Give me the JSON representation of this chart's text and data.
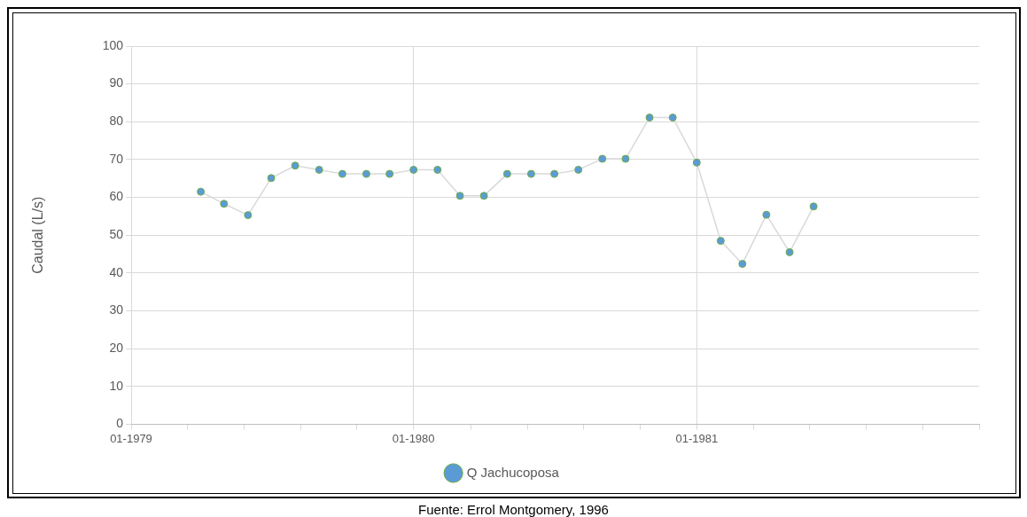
{
  "chart_data": {
    "type": "line",
    "ylabel": "Caudal (L/s)",
    "x": [
      "1979-04",
      "1979-05",
      "1979-06",
      "1979-07",
      "1979-08",
      "1979-09",
      "1979-10",
      "1979-11",
      "1979-12",
      "1980-01",
      "1980-02",
      "1980-03",
      "1980-04",
      "1980-05",
      "1980-06",
      "1980-07",
      "1980-08",
      "1980-09",
      "1980-10",
      "1980-11",
      "1980-12",
      "1981-01",
      "1981-02",
      "1981-03",
      "1981-04",
      "1981-05",
      "1981-06"
    ],
    "series": [
      {
        "name": "Q Jachucoposa",
        "color": "#5b9bd5",
        "values": [
          61.5,
          58.3,
          55.3,
          65.1,
          68.4,
          67.3,
          66.2,
          66.2,
          66.2,
          67.3,
          67.3,
          60.4,
          60.4,
          66.2,
          66.2,
          66.2,
          67.3,
          70.2,
          70.2,
          81.1,
          81.1,
          69.2,
          48.5,
          42.4,
          55.4,
          45.5,
          57.6
        ]
      }
    ],
    "xlim": [
      "1979-01-01",
      "1982-01-01"
    ],
    "xticks": [
      {
        "value": "1979-01-01",
        "label": "01-1979"
      },
      {
        "value": "1979-03-15",
        "label": null
      },
      {
        "value": "1979-05-27",
        "label": null
      },
      {
        "value": "1979-08-08",
        "label": null
      },
      {
        "value": "1979-10-20",
        "label": null
      },
      {
        "value": "1980-01-01",
        "label": "01-1980"
      },
      {
        "value": "1980-03-15",
        "label": null
      },
      {
        "value": "1980-05-27",
        "label": null
      },
      {
        "value": "1980-08-08",
        "label": null
      },
      {
        "value": "1980-10-20",
        "label": null
      },
      {
        "value": "1981-01-01",
        "label": "01-1981"
      },
      {
        "value": "1981-03-15",
        "label": null
      },
      {
        "value": "1981-05-27",
        "label": null
      },
      {
        "value": "1981-08-08",
        "label": null
      },
      {
        "value": "1981-10-20",
        "label": null
      },
      {
        "value": "1982-01-01",
        "label": null
      }
    ],
    "ylim": [
      0,
      100
    ],
    "yticks": [
      0,
      10,
      20,
      30,
      40,
      50,
      60,
      70,
      80,
      90,
      100
    ],
    "grid": true,
    "legend": "bottom",
    "marker": "circle",
    "line_style": "solid",
    "annotations": [
      "Fuente: Errol Montgomery, 1996"
    ]
  }
}
